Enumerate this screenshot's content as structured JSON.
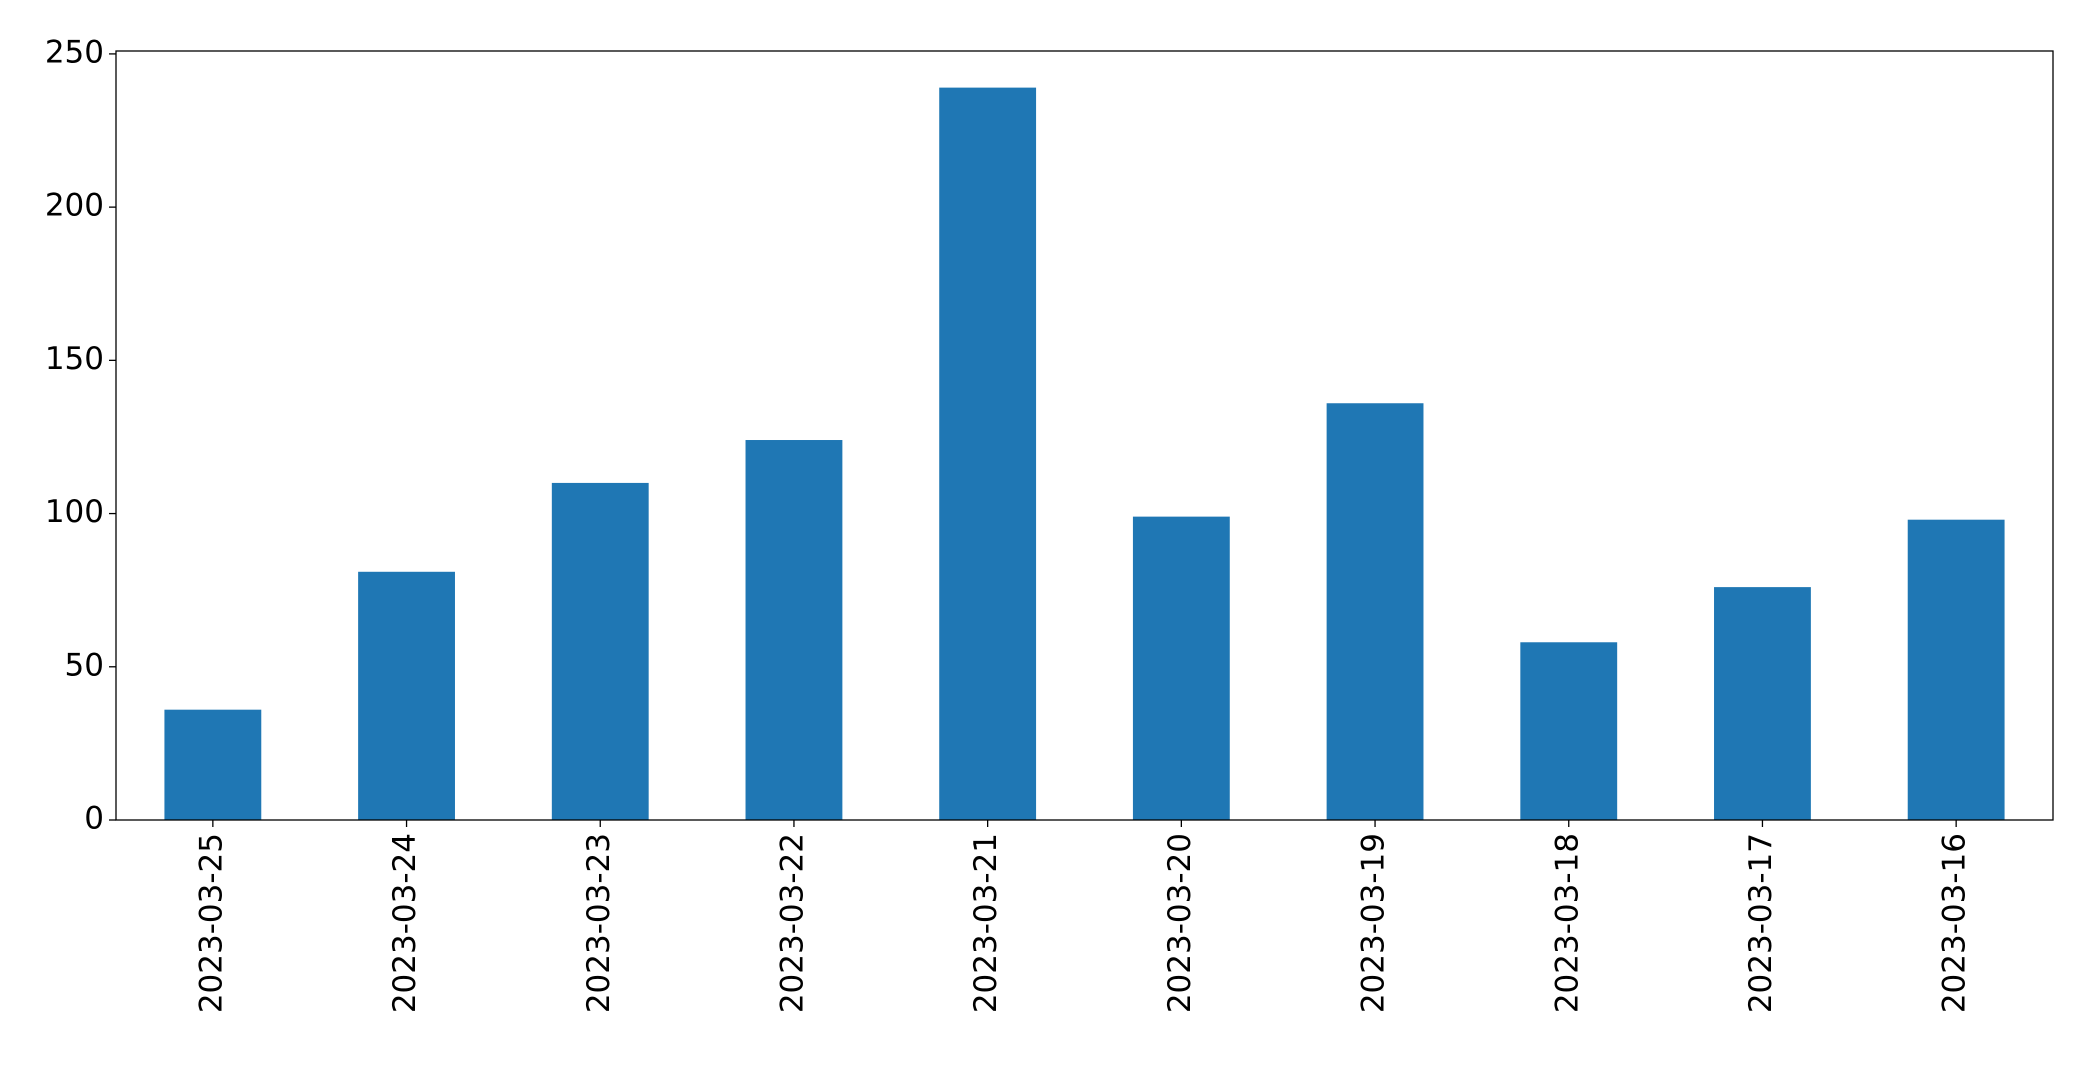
{
  "chart_data": {
    "type": "bar",
    "categories": [
      "2023-03-25",
      "2023-03-24",
      "2023-03-23",
      "2023-03-22",
      "2023-03-21",
      "2023-03-20",
      "2023-03-19",
      "2023-03-18",
      "2023-03-17",
      "2023-03-16"
    ],
    "values": [
      36,
      81,
      110,
      124,
      239,
      99,
      136,
      58,
      76,
      98
    ],
    "color": "#1f77b4",
    "ylim": [
      0,
      250.95
    ],
    "yticks": [
      0,
      50,
      100,
      150,
      200,
      250
    ],
    "grid": false
  }
}
